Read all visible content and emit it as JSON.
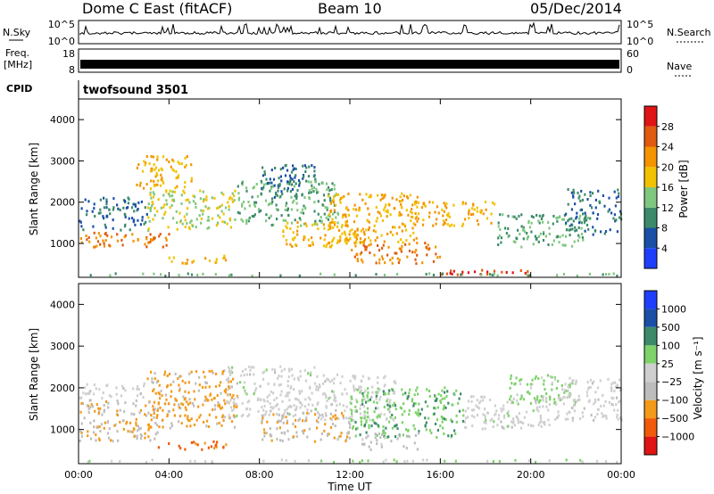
{
  "header": {
    "station": "Dome C East (fitACF)",
    "beam": "Beam 10",
    "date": "05/Dec/2014"
  },
  "aux_panels": {
    "nsky_label": "N.Sky",
    "nsky_ticks": [
      "10^5",
      "10^0"
    ],
    "nsearch_label": "N.Search",
    "nsearch_ticks": [
      "10^5",
      "10^0"
    ],
    "freq_label_1": "Freq.",
    "freq_label_2": "[MHz]",
    "freq_ticks": [
      "18",
      "8"
    ],
    "nave_label": "Nave",
    "nave_ticks": [
      "60",
      "0"
    ],
    "cpid_label": "CPID",
    "cpid_value": "twofsound 3501"
  },
  "colors": {
    "power_scale": [
      "#1f3fff",
      "#1a4fa8",
      "#3c8a6a",
      "#7fc77f",
      "#f2c200",
      "#f39400",
      "#e05a10",
      "#e01414"
    ],
    "velocity_scale": [
      "#e01414",
      "#f05a0a",
      "#f39a1a",
      "#bdbdbd",
      "#cfcfcf",
      "#7dd26a",
      "#3c8a6a",
      "#1a4fa8",
      "#1f3fff"
    ]
  },
  "chart_data": [
    {
      "type": "heatmap",
      "name": "power",
      "xlabel": "Time UT",
      "ylabel": "Slant Range [km]",
      "x_ticks": [
        "00:00",
        "04:00",
        "08:00",
        "12:00",
        "16:00",
        "20:00",
        "00:00"
      ],
      "y_ticks": [
        "1000",
        "2000",
        "3000",
        "4000"
      ],
      "ylim": [
        180,
        4500
      ],
      "colorbar": {
        "label": "Power [dB]",
        "ticks": [
          "28",
          "24",
          "20",
          "16",
          "12",
          "8",
          "4"
        ],
        "range": [
          0,
          32
        ]
      },
      "bands": [
        {
          "t0": 0.0,
          "t1": 3.0,
          "r0": 1300,
          "r1": 2100,
          "value": 8
        },
        {
          "t0": 0.0,
          "t1": 4.0,
          "r0": 900,
          "r1": 1250,
          "value": 24
        },
        {
          "t0": 3.0,
          "t1": 7.0,
          "r0": 1300,
          "r1": 2300,
          "value": 16
        },
        {
          "t0": 2.5,
          "t1": 5.0,
          "r0": 2300,
          "r1": 3100,
          "value": 20
        },
        {
          "t0": 3.8,
          "t1": 6.5,
          "r0": 500,
          "r1": 700,
          "value": 20
        },
        {
          "t0": 7.0,
          "t1": 11.5,
          "r0": 1400,
          "r1": 2500,
          "value": 12
        },
        {
          "t0": 8.0,
          "t1": 10.5,
          "r0": 2100,
          "r1": 2900,
          "value": 8
        },
        {
          "t0": 9.0,
          "t1": 12.5,
          "r0": 900,
          "r1": 1500,
          "value": 20
        },
        {
          "t0": 11.0,
          "t1": 15.0,
          "r0": 1000,
          "r1": 2200,
          "value": 20
        },
        {
          "t0": 12.0,
          "t1": 16.0,
          "r0": 500,
          "r1": 1000,
          "value": 24
        },
        {
          "t0": 14.5,
          "t1": 18.5,
          "r0": 1400,
          "r1": 2000,
          "value": 20
        },
        {
          "t0": 16.0,
          "t1": 20.0,
          "r0": 200,
          "r1": 350,
          "value": 28
        },
        {
          "t0": 18.5,
          "t1": 22.5,
          "r0": 900,
          "r1": 1700,
          "value": 12
        },
        {
          "t0": 21.5,
          "t1": 24.0,
          "r0": 1200,
          "r1": 2300,
          "value": 8
        },
        {
          "t0": 0.0,
          "t1": 24.0,
          "r0": 200,
          "r1": 260,
          "value": 12
        }
      ]
    },
    {
      "type": "heatmap",
      "name": "velocity",
      "xlabel": "Time UT",
      "ylabel": "Slant Range [km]",
      "x_ticks": [
        "00:00",
        "04:00",
        "08:00",
        "12:00",
        "16:00",
        "20:00",
        "00:00"
      ],
      "y_ticks": [
        "1000",
        "2000",
        "3000",
        "4000"
      ],
      "ylim": [
        180,
        4500
      ],
      "colorbar": {
        "label": "Velocity [m s⁻¹]",
        "ticks": [
          "1000",
          "500",
          "100",
          "25",
          "−25",
          "−100",
          "−500",
          "−1000"
        ],
        "range": [
          -1000,
          1000
        ]
      },
      "bands": [
        {
          "t0": 0.0,
          "t1": 3.5,
          "r0": 700,
          "r1": 1700,
          "value": -300
        },
        {
          "t0": 0.0,
          "t1": 3.0,
          "r0": 1700,
          "r1": 2100,
          "value": 0
        },
        {
          "t0": 3.0,
          "t1": 7.0,
          "r0": 1000,
          "r1": 2400,
          "value": -400
        },
        {
          "t0": 3.5,
          "t1": 6.5,
          "r0": 500,
          "r1": 700,
          "value": -600
        },
        {
          "t0": 6.5,
          "t1": 10.5,
          "r0": 1300,
          "r1": 2500,
          "value": 0
        },
        {
          "t0": 8.0,
          "t1": 12.0,
          "r0": 700,
          "r1": 1400,
          "value": -300
        },
        {
          "t0": 10.5,
          "t1": 14.0,
          "r0": 1200,
          "r1": 2300,
          "value": 0
        },
        {
          "t0": 12.0,
          "t1": 17.0,
          "r0": 800,
          "r1": 2000,
          "value": 300
        },
        {
          "t0": 12.5,
          "t1": 15.0,
          "r0": 500,
          "r1": 900,
          "value": -200
        },
        {
          "t0": 17.0,
          "t1": 21.0,
          "r0": 1000,
          "r1": 1800,
          "value": 0
        },
        {
          "t0": 19.0,
          "t1": 22.0,
          "r0": 1600,
          "r1": 2300,
          "value": 200
        },
        {
          "t0": 21.0,
          "t1": 24.0,
          "r0": 1200,
          "r1": 2200,
          "value": -20
        },
        {
          "t0": 0.0,
          "t1": 24.0,
          "r0": 200,
          "r1": 260,
          "value": 80
        }
      ]
    }
  ]
}
